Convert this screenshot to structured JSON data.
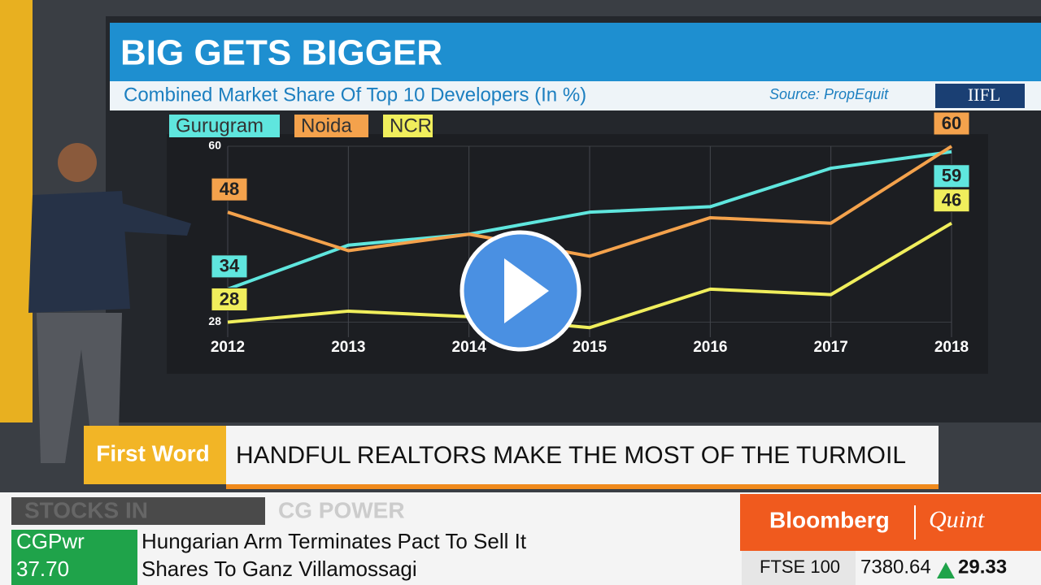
{
  "chart_data": {
    "type": "line",
    "title": "BIG GETS BIGGER",
    "subtitle": "Combined Market Share Of Top 10 Developers (In %)",
    "source": "Source: PropEquit",
    "logo": "IIFL",
    "categories": [
      "2012",
      "2013",
      "2014",
      "2015",
      "2016",
      "2017",
      "2018"
    ],
    "series": [
      {
        "name": "Gurugram",
        "color": "#5fe6de",
        "values": [
          34,
          42,
          44,
          48,
          49,
          56,
          59
        ]
      },
      {
        "name": "Noida",
        "color": "#f4a24c",
        "values": [
          48,
          41,
          44,
          40,
          47,
          46,
          60
        ]
      },
      {
        "name": "NCR",
        "color": "#f0ee5c",
        "values": [
          28,
          30,
          29,
          27,
          34,
          33,
          46
        ]
      }
    ],
    "ylim": [
      26,
      60
    ],
    "yticks": [
      28,
      60
    ],
    "grid": true
  },
  "broadcast": {
    "segment": "First Word",
    "headline": "HANDFUL REALTORS MAKE THE MOST OF THE TURMOIL",
    "stocks_label": "STOCKS IN",
    "stocks_name": "CG POWER",
    "ticker": "CGPwr",
    "price": "37.70",
    "news_line1": "Hungarian Arm Terminates Pact To Sell It",
    "news_line2": "Shares To Ganz Villamossagi",
    "brand1": "Bloomberg",
    "brand2": "Quint",
    "index_name": "FTSE 100",
    "index_value": "7380.64",
    "index_change": "29.33"
  }
}
